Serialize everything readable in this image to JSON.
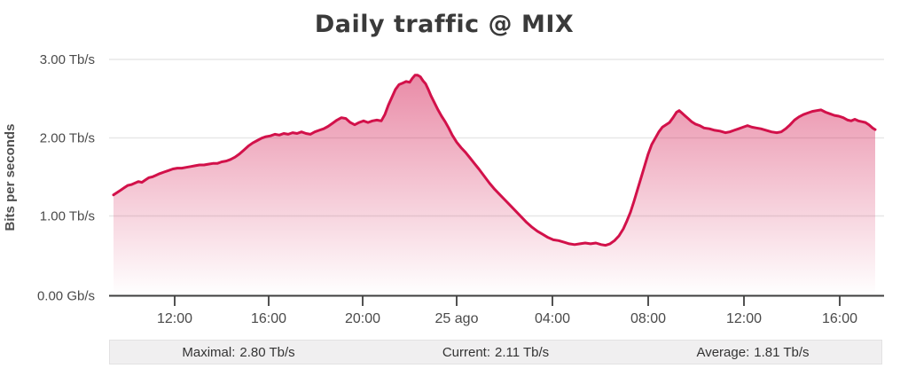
{
  "title": "Daily traffic @ MIX",
  "chart_data": {
    "type": "area",
    "title": "Daily traffic @ MIX",
    "ylabel": "Bits per seconds",
    "xlabel": "",
    "grid": true,
    "legend": false,
    "unit": "Tb/s",
    "ylim_tbps": [
      0,
      3.16
    ],
    "yticks": [
      {
        "v": 3.0,
        "label": "3.00 Tb/s"
      },
      {
        "v": 2.0,
        "label": "2.00 Tb/s"
      },
      {
        "v": 1.0,
        "label": "1.00 Tb/s"
      },
      {
        "v": 0.0,
        "label": "0.00 Gb/s"
      }
    ],
    "xticks": [
      {
        "label": "12:00"
      },
      {
        "label": "16:00"
      },
      {
        "label": "20:00"
      },
      {
        "label": "25 ago"
      },
      {
        "label": "04:00"
      },
      {
        "label": "08:00"
      },
      {
        "label": "12:00"
      },
      {
        "label": "16:00"
      }
    ],
    "colors": {
      "line": "#d2114a",
      "grid": "#e7e7e7",
      "axis": "#3f3f3f",
      "fill_top_opacity": 0.52
    },
    "series": [
      {
        "name": "traffic",
        "unit": "Tb/s",
        "points": [
          [
            128,
            1.28
          ],
          [
            132,
            1.31
          ],
          [
            136,
            1.34
          ],
          [
            140,
            1.37
          ],
          [
            144,
            1.4
          ],
          [
            148,
            1.41
          ],
          [
            152,
            1.43
          ],
          [
            156,
            1.45
          ],
          [
            160,
            1.44
          ],
          [
            164,
            1.47
          ],
          [
            168,
            1.5
          ],
          [
            172,
            1.51
          ],
          [
            176,
            1.53
          ],
          [
            180,
            1.55
          ],
          [
            185,
            1.57
          ],
          [
            190,
            1.59
          ],
          [
            195,
            1.61
          ],
          [
            200,
            1.62
          ],
          [
            205,
            1.62
          ],
          [
            210,
            1.63
          ],
          [
            215,
            1.64
          ],
          [
            220,
            1.65
          ],
          [
            225,
            1.66
          ],
          [
            230,
            1.66
          ],
          [
            235,
            1.67
          ],
          [
            240,
            1.68
          ],
          [
            245,
            1.68
          ],
          [
            250,
            1.7
          ],
          [
            255,
            1.71
          ],
          [
            260,
            1.73
          ],
          [
            265,
            1.76
          ],
          [
            270,
            1.8
          ],
          [
            275,
            1.85
          ],
          [
            280,
            1.9
          ],
          [
            285,
            1.94
          ],
          [
            290,
            1.97
          ],
          [
            295,
            2.0
          ],
          [
            300,
            2.02
          ],
          [
            305,
            2.03
          ],
          [
            310,
            2.05
          ],
          [
            315,
            2.04
          ],
          [
            320,
            2.06
          ],
          [
            325,
            2.05
          ],
          [
            330,
            2.07
          ],
          [
            335,
            2.06
          ],
          [
            340,
            2.08
          ],
          [
            345,
            2.06
          ],
          [
            350,
            2.05
          ],
          [
            355,
            2.08
          ],
          [
            360,
            2.1
          ],
          [
            365,
            2.12
          ],
          [
            370,
            2.15
          ],
          [
            375,
            2.19
          ],
          [
            380,
            2.23
          ],
          [
            385,
            2.26
          ],
          [
            390,
            2.25
          ],
          [
            395,
            2.2
          ],
          [
            400,
            2.17
          ],
          [
            405,
            2.2
          ],
          [
            410,
            2.22
          ],
          [
            415,
            2.2
          ],
          [
            420,
            2.22
          ],
          [
            425,
            2.23
          ],
          [
            430,
            2.22
          ],
          [
            434,
            2.3
          ],
          [
            438,
            2.42
          ],
          [
            442,
            2.52
          ],
          [
            446,
            2.62
          ],
          [
            450,
            2.68
          ],
          [
            454,
            2.7
          ],
          [
            458,
            2.72
          ],
          [
            462,
            2.71
          ],
          [
            465,
            2.76
          ],
          [
            468,
            2.8
          ],
          [
            471,
            2.8
          ],
          [
            474,
            2.78
          ],
          [
            477,
            2.73
          ],
          [
            480,
            2.69
          ],
          [
            483,
            2.62
          ],
          [
            486,
            2.54
          ],
          [
            490,
            2.45
          ],
          [
            494,
            2.36
          ],
          [
            498,
            2.28
          ],
          [
            502,
            2.21
          ],
          [
            506,
            2.13
          ],
          [
            510,
            2.04
          ],
          [
            515,
            1.95
          ],
          [
            520,
            1.88
          ],
          [
            525,
            1.82
          ],
          [
            530,
            1.75
          ],
          [
            535,
            1.68
          ],
          [
            540,
            1.61
          ],
          [
            546,
            1.52
          ],
          [
            552,
            1.43
          ],
          [
            558,
            1.35
          ],
          [
            564,
            1.28
          ],
          [
            570,
            1.21
          ],
          [
            576,
            1.14
          ],
          [
            582,
            1.07
          ],
          [
            588,
            1.0
          ],
          [
            594,
            0.93
          ],
          [
            600,
            0.87
          ],
          [
            606,
            0.82
          ],
          [
            612,
            0.78
          ],
          [
            618,
            0.74
          ],
          [
            624,
            0.71
          ],
          [
            630,
            0.7
          ],
          [
            636,
            0.68
          ],
          [
            642,
            0.66
          ],
          [
            648,
            0.65
          ],
          [
            654,
            0.66
          ],
          [
            660,
            0.67
          ],
          [
            666,
            0.66
          ],
          [
            672,
            0.67
          ],
          [
            678,
            0.65
          ],
          [
            683,
            0.64
          ],
          [
            688,
            0.66
          ],
          [
            693,
            0.7
          ],
          [
            698,
            0.76
          ],
          [
            703,
            0.85
          ],
          [
            707,
            0.95
          ],
          [
            711,
            1.06
          ],
          [
            715,
            1.2
          ],
          [
            719,
            1.35
          ],
          [
            723,
            1.5
          ],
          [
            727,
            1.65
          ],
          [
            731,
            1.8
          ],
          [
            735,
            1.92
          ],
          [
            739,
            2.0
          ],
          [
            743,
            2.08
          ],
          [
            747,
            2.14
          ],
          [
            751,
            2.17
          ],
          [
            755,
            2.2
          ],
          [
            759,
            2.26
          ],
          [
            763,
            2.33
          ],
          [
            766,
            2.35
          ],
          [
            769,
            2.32
          ],
          [
            772,
            2.29
          ],
          [
            776,
            2.25
          ],
          [
            780,
            2.21
          ],
          [
            784,
            2.18
          ],
          [
            789,
            2.16
          ],
          [
            794,
            2.13
          ],
          [
            800,
            2.12
          ],
          [
            806,
            2.1
          ],
          [
            812,
            2.09
          ],
          [
            818,
            2.07
          ],
          [
            823,
            2.08
          ],
          [
            828,
            2.1
          ],
          [
            833,
            2.12
          ],
          [
            838,
            2.14
          ],
          [
            843,
            2.16
          ],
          [
            848,
            2.14
          ],
          [
            853,
            2.13
          ],
          [
            858,
            2.12
          ],
          [
            864,
            2.1
          ],
          [
            870,
            2.08
          ],
          [
            876,
            2.07
          ],
          [
            881,
            2.08
          ],
          [
            886,
            2.12
          ],
          [
            891,
            2.17
          ],
          [
            896,
            2.23
          ],
          [
            901,
            2.27
          ],
          [
            906,
            2.3
          ],
          [
            911,
            2.32
          ],
          [
            916,
            2.34
          ],
          [
            921,
            2.35
          ],
          [
            926,
            2.36
          ],
          [
            931,
            2.33
          ],
          [
            936,
            2.31
          ],
          [
            941,
            2.29
          ],
          [
            946,
            2.28
          ],
          [
            951,
            2.26
          ],
          [
            956,
            2.23
          ],
          [
            960,
            2.22
          ],
          [
            964,
            2.24
          ],
          [
            968,
            2.22
          ],
          [
            972,
            2.21
          ],
          [
            976,
            2.2
          ],
          [
            980,
            2.17
          ],
          [
            984,
            2.13
          ],
          [
            987,
            2.11
          ]
        ]
      }
    ]
  },
  "footer": {
    "stats": [
      {
        "label": "Maximal:",
        "value": "2.80 Tb/s"
      },
      {
        "label": "Current:",
        "value": "2.11 Tb/s"
      },
      {
        "label": "Average:",
        "value": "1.81 Tb/s"
      }
    ]
  }
}
